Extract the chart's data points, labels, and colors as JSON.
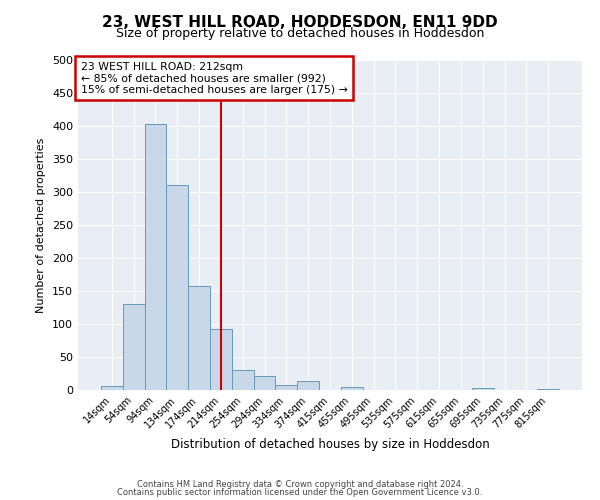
{
  "title": "23, WEST HILL ROAD, HODDESDON, EN11 9DD",
  "subtitle": "Size of property relative to detached houses in Hoddesdon",
  "xlabel": "Distribution of detached houses by size in Hoddesdon",
  "ylabel": "Number of detached properties",
  "bar_labels": [
    "14sqm",
    "54sqm",
    "94sqm",
    "134sqm",
    "174sqm",
    "214sqm",
    "254sqm",
    "294sqm",
    "334sqm",
    "374sqm",
    "415sqm",
    "455sqm",
    "495sqm",
    "535sqm",
    "575sqm",
    "615sqm",
    "655sqm",
    "695sqm",
    "735sqm",
    "775sqm",
    "815sqm"
  ],
  "bar_values": [
    6,
    130,
    403,
    310,
    157,
    93,
    30,
    21,
    7,
    13,
    0,
    5,
    0,
    0,
    0,
    0,
    0,
    3,
    0,
    0,
    2
  ],
  "bar_color": "#c8d8e8",
  "bar_edge_color": "#6699bb",
  "vline_x_index": 5,
  "vline_color": "#cc0000",
  "annotation_title": "23 WEST HILL ROAD: 212sqm",
  "annotation_line1": "← 85% of detached houses are smaller (992)",
  "annotation_line2": "15% of semi-detached houses are larger (175) →",
  "annotation_box_color": "#cc0000",
  "ylim": [
    0,
    500
  ],
  "yticks": [
    0,
    50,
    100,
    150,
    200,
    250,
    300,
    350,
    400,
    450,
    500
  ],
  "footer1": "Contains HM Land Registry data © Crown copyright and database right 2024.",
  "footer2": "Contains public sector information licensed under the Open Government Licence v3.0.",
  "bg_color": "#ffffff",
  "plot_bg_color": "#e8eef4",
  "grid_color": "#ffffff",
  "title_fontsize": 11,
  "subtitle_fontsize": 9
}
